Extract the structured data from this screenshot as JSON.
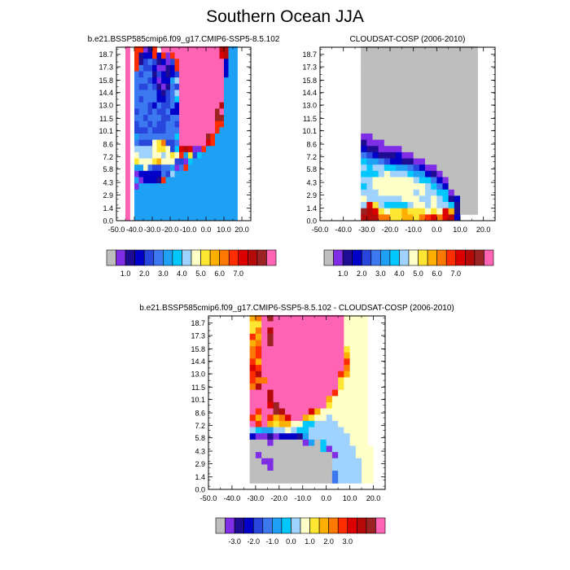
{
  "title": "Southern Ocean JJA",
  "palettes": {
    "absolute": [
      "#bebebe",
      "#7f2ee6",
      "#1e0c92",
      "#0000c8",
      "#2846dc",
      "#3c78f0",
      "#1ea0f5",
      "#00c8ff",
      "#a0d2ff",
      "#ffffc8",
      "#ffe632",
      "#ffaf00",
      "#ff7800",
      "#ff2d00",
      "#dc0000",
      "#b40a0a",
      "#9b2323",
      "#ff64b4"
    ],
    "difference": [
      "#bebebe",
      "#7f2ee6",
      "#1e0c92",
      "#0000c8",
      "#2846dc",
      "#3c78f0",
      "#1ea0f5",
      "#00c8ff",
      "#a0d2ff",
      "#ffffc8",
      "#ffe632",
      "#ffaf00",
      "#ff7800",
      "#ff2d00",
      "#dc0000",
      "#b40a0a",
      "#9b2323",
      "#ff64b4"
    ]
  },
  "colorbars": [
    {
      "labels": [
        "1.0",
        "2.0",
        "3.0",
        "4.0",
        "5.0",
        "6.0",
        "7.0"
      ]
    },
    {
      "labels": [
        "1.0",
        "2.0",
        "3.0",
        "4.0",
        "5.0",
        "6.0",
        "7.0"
      ]
    },
    {
      "labels": [
        "-3.0",
        "-2.0",
        "-1.0",
        "0.0",
        "1.0",
        "2.0",
        "3.0"
      ]
    }
  ],
  "chart_data": [
    {
      "type": "heatmap",
      "title": "b.e21.BSSP585cmip6.f09_g17.CMIP6-SSP5-8.5.102",
      "x_ticks": [
        "-50.0",
        "-40.0",
        "-30.0",
        "-20.0",
        "-10.0",
        "0.0",
        "10.0",
        "20.0"
      ],
      "y_ticks": [
        "0.0",
        "1.4",
        "2.9",
        "4.3",
        "5.8",
        "7.2",
        "8.6",
        "10.1",
        "11.5",
        "13.0",
        "14.4",
        "15.8",
        "17.3",
        "18.7"
      ],
      "xlim": [
        -50,
        25
      ],
      "ylim": [
        0,
        19.5
      ],
      "x_step": 2.5,
      "y_step": 0.7,
      "palette": "absolute",
      "value_grid": [
        "..R.NNBCN.RRRRRRRRRRRRRPPGG",
        "..R.NCDDNDNBNRRRRRRRRRROPGG",
        "..R.NCEFECDBENRRRRRRRRRRDGG",
        "..R.NFEEDBBCDNRRRRRRRRRRDGG",
        "..R.FEFFCEDCDERRRRRRRRRRDGG",
        "..R.FFFEDBDDGIRRRRRRRRRRGGG",
        "..R.FEEFECBCFERRRRRRRRRRGGG",
        "..R.FFFFFDCEFIRRRRRRRRRRGGG",
        "..R.FEFFFDDEFHRRRRRRRRRRGGG",
        "..R.FFFEDFEEFDRRRRRRRRRPGGG",
        "..R.EFFEFEEFDDRRRRRRRRQRGGG",
        "..R.FFEFFFEEFFRRRRRRRRQQGGG",
        "..R.EFFEFEEFFERRRRRRRRNNGGG",
        "..R.EEEFEEEFFFRRRRRRRRNGGGG",
        "..R.GFFFFFFFFHRRRRRRQNGGGGG",
        "..R.FEEEJKMEEFRRRRRRONGGGGG",
        "..R.IIIIJKKJEHOPOBBNGGGGGGG",
        "..R.JIIIJJIJKJNGKEHGGGGGGGG",
        "..R.KJJJKLJJJEEBHGGGGGGGGGG",
        "..R.GGJFEEFFGBFNGGGGGGGGGGG",
        "..R.BDDDDDFEIGGGGGGGGGGGGGG",
        "..R.GBDDDCNGGGGGGGGGGGGGGGG",
        "..R.BGGGGGGGGGGGGGGGGGGGGGG",
        "..R.GGGGGGGGGGGGGGGGGGGGGGG",
        "..R.GGGGGGGGGGGGGGGGGGGGGGG",
        "..R.GGGGGGGGGGGGGGGGGGGGGGG",
        "..R.GGGGGGGGGGGGGGGGGGGGGGG",
        "..R.GGGGGGGGGGGGGGGGGGGGGGG"
      ]
    },
    {
      "type": "heatmap",
      "title": "CLOUDSAT-COSP (2006-2010)",
      "x_ticks": [
        "-50.0",
        "-40.0",
        "-30.0",
        "-20.0",
        "-10.0",
        "0.0",
        "10.0",
        "20.0"
      ],
      "y_ticks": [
        "0.0",
        "1.4",
        "2.9",
        "4.3",
        "5.8",
        "7.2",
        "8.6",
        "10.1",
        "11.5",
        "13.0",
        "14.4",
        "15.8",
        "17.3",
        "18.7"
      ],
      "xlim": [
        -50,
        25
      ],
      "ylim": [
        0,
        19.5
      ],
      "x_step": 2.5,
      "y_step": 0.7,
      "palette": "absolute",
      "value_grid": [
        ".......AAAAAAAAAAAAAAAAAAAA",
        ".......AAAAAAAAAAAAAAAAAAAA",
        ".......AAAAAAAAAAAAAAAAAAAA",
        ".......AAAAAAAAAAAAAAAAAAAA",
        ".......AAAAAAAAAAAAAAAAAAAA",
        ".......AAAAAAAAAAAAAAAAAAAA",
        ".......AAAAAAAAAAAAAAAAAAAA",
        ".......AAAAAAAAAAAAAAAAAAAA",
        ".......AAAAAAAAAAAAAAAAAAAA",
        ".......AAAAAAAAAAAAAAAAAAAA",
        ".......AAAAAAAAAAAAAAAAAAAA",
        ".......AAAAAAAAAAAAAAAAAAAA",
        ".......AAAAAAAAAAAAAAAAAAAA",
        ".......AAAAAAAAAAAAAAAAAAAA",
        ".......BBAAAAAAAAAAAAAAAAAA",
        ".......CBBBAAAAAAAAAAAAAAAA",
        ".......DCCBBBBAAAAAAAAAAAAA",
        ".......FEDCCCDBBAAAAAAAAAAA",
        ".......HGGFEDDCCBBAAAAAAAAA",
        ".......IHIIHHGGFEDBBAAAAAAA",
        ".......HHHIJIIIHGGDCBAAAAAA",
        ".......IIJJJJJJJIHHFDBAAAAA",
        ".......HIJJJJJJJJJIHFDAAAAA",
        ".......IIIJJJJJJIJIIHHBAAAA",
        ".......JIIIIIIJJJIIJIHCDAAA",
        ".......IOKIHHHHIJJIJIIHCAAA",
        ".......QPOKJKKLKKKJKJOLCAAA",
        ".......PPPMMKKLLKMNOMOPD..."
      ]
    },
    {
      "type": "heatmap",
      "title": "b.e21.BSSP585cmip6.f09_g17.CMIP6-SSP5-8.5.102 - CLOUDSAT-COSP (2006-2010)",
      "x_ticks": [
        "-50.0",
        "-40.0",
        "-30.0",
        "-20.0",
        "-10.0",
        "0.0",
        "10.0",
        "20.0"
      ],
      "y_ticks": [
        "0.0",
        "1.4",
        "2.9",
        "4.3",
        "5.8",
        "7.2",
        "8.6",
        "10.1",
        "11.5",
        "13.0",
        "14.4",
        "15.8",
        "17.3",
        "18.7"
      ],
      "xlim": [
        -50,
        25
      ],
      "ylim": [
        0,
        19.5
      ],
      "x_step": 2.5,
      "y_step": 0.7,
      "palette": "difference",
      "value_grid": [
        ".......LMRQRRRRRRRRRRRRJJJJ",
        ".......KKRRRRRRRRRRRRRRJJJJ",
        ".......KMRPRRRRRRRRRRRRJJJJ",
        ".......NLRQRRRRRRRRRRRRJJJJ",
        ".......LMRQRRRRRRRRRRRRJJJJ",
        ".......MNRRRRRRRRRRRRRRKJJJ",
        ".......MNRRRRRRRRRRRRRRLJJJ",
        ".......NLRRRRRRRRRRRRRRNJJJ",
        ".......ONRRRRRRRRRRRRRRMJJJ",
        ".......NPRRRRRRRRRRRRRNLJJJ",
        ".......NMMRRRRRRRRRRRRKJJJJ",
        ".......MPRRRRRRRRRRRRRKJJJJ",
        ".......RRRPRRRRRRRRRRNJJJJJ",
        ".......RRRPRRRRRRRRRLJJJJJJ",
        ".......RRROQRRRRRRRRKJJJJJJ",
        ".......RNRRQPRRRROLJJJJJJJJ",
        ".......NLRNLMORRLKJJIJJJJJJ",
        ".......RNRLKLLJJHHIIIIJJJJJ",
        ".......IHGGIIJIHHIIIIIIJJJJ",
        ".......DBBCBDDDCGIIIIIIIJJJ",
        ".......AAABAAAAABGAHIIIIJJJ",
        ".......AAAAAAAAAAAAHBIIIIJJJ",
        ".......ABAAAAAAAAAAAABIIIJJJ",
        ".......AABBAAAAAAAAAAIIIIIJJ",
        ".......AAABAAAAAAAAAAIIIIIJJ",
        ".......AAAAAAAAAAAAAAFIIIIJJ",
        ".......AAAAAAAAAAAAAAFIIIIJJ",
        "..........................."
      ]
    }
  ]
}
